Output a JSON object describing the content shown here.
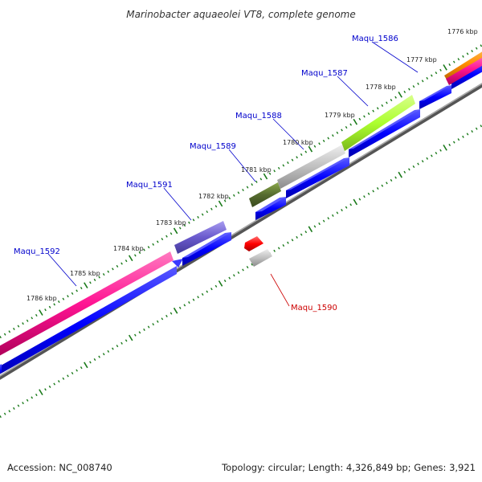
{
  "title": "Marinobacter aquaeolei VT8, complete genome",
  "footer": {
    "accession": "Accession: NC_008740",
    "summary": "Topology: circular; Length: 4,326,849 bp; Genes: 3,921"
  },
  "colors": {
    "plus_strand_feature": "#0000ff",
    "backbone": "#808080",
    "tick": "#1a7a1a",
    "forward_label": "#0000cc",
    "reverse_label": "#cc0000"
  },
  "ticks": [
    "1776 kbp",
    "1777 kbp",
    "1778 kbp",
    "1779 kbp",
    "1780 kbp",
    "1781 kbp",
    "1782 kbp",
    "1783 kbp",
    "1784 kbp",
    "1785 kbp",
    "1786 kbp"
  ],
  "genes": [
    {
      "name": "Maqu_1586",
      "strand": "forward",
      "color": "#ff8c00"
    },
    {
      "name": "Maqu_1587",
      "strand": "forward",
      "color": "#adff2f"
    },
    {
      "name": "Maqu_1588",
      "strand": "forward",
      "color": "#c0c0c0"
    },
    {
      "name": "Maqu_1589",
      "strand": "forward",
      "color": "#556b2f"
    },
    {
      "name": "Maqu_1590",
      "strand": "reverse",
      "color": "#ff0000"
    },
    {
      "name": "Maqu_1591",
      "strand": "forward",
      "color": "#6a5acd"
    },
    {
      "name": "Maqu_1592",
      "strand": "forward",
      "color": "#ff1493"
    }
  ]
}
